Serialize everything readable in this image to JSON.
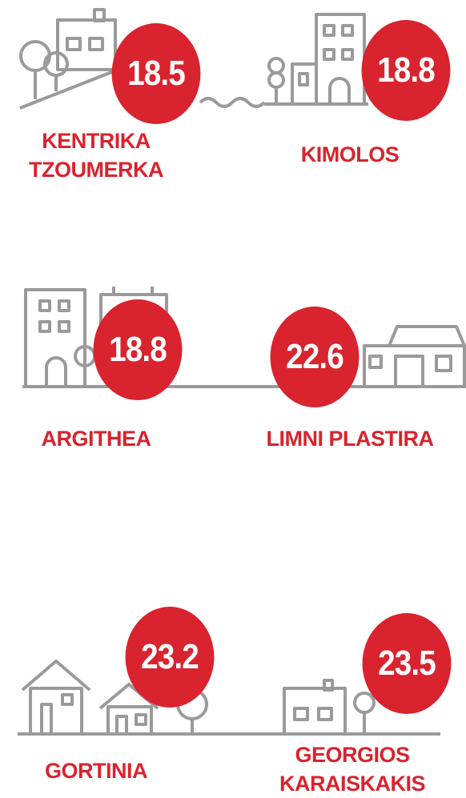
{
  "items": [
    {
      "label": "KENTRIKA TZOUMERKA",
      "value": 18.5
    },
    {
      "label": "KIMOLOS",
      "value": 18.8
    },
    {
      "label": "ARGITHEA",
      "value": 18.8
    },
    {
      "label": "LIMNI PLASTIRA",
      "value": 22.6
    },
    {
      "label": "GORTINIA",
      "value": 23.2
    },
    {
      "label": "GEORGIOS KARAISKAKIS",
      "value": 23.5
    }
  ]
}
